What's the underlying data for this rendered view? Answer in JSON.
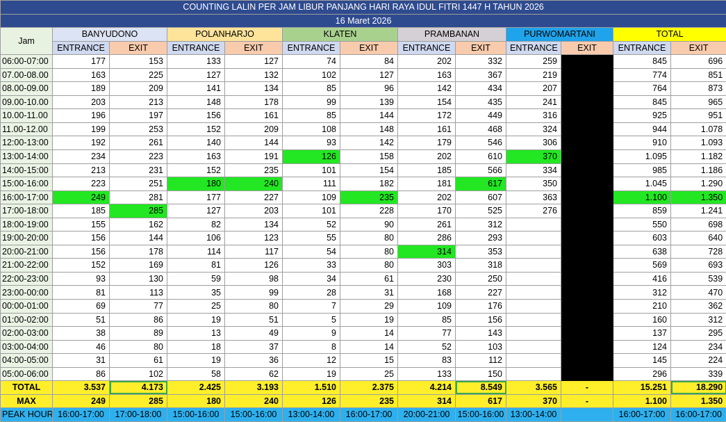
{
  "title": "COUNTING LALIN PER JAM LIBUR PANJANG HARI RAYA IDUL FITRI 1447 H TAHUN 2026",
  "date": "16 Maret 2026",
  "jam_label": "Jam",
  "entrance_label": "ENTRANCE",
  "exit_label": "EXIT",
  "gates": [
    {
      "name": "BANYUDONO",
      "head_color": "#dbe3f4",
      "entr_color": "#cfd9ef",
      "exit_color": "#f8cbad"
    },
    {
      "name": "POLANHARJO",
      "head_color": "#fde49a",
      "entr_color": "#cfd9ef",
      "exit_color": "#f8cbad"
    },
    {
      "name": "KLATEN",
      "head_color": "#a9d18e",
      "entr_color": "#cfd9ef",
      "exit_color": "#f8cbad"
    },
    {
      "name": "PRAMBANAN",
      "head_color": "#d5d0d5",
      "entr_color": "#cfd9ef",
      "exit_color": "#f8cbad"
    },
    {
      "name": "PURWOMARTANI",
      "head_color": "#1fa3ea",
      "entr_color": "#cfd9ef",
      "exit_color": "#f8cbad"
    },
    {
      "name": "TOTAL",
      "head_color": "#ffff00",
      "entr_color": "#cfd9ef",
      "exit_color": "#f8cbad"
    }
  ],
  "rows": [
    {
      "time": "06:00-07:00",
      "v": [
        "177",
        "153",
        "133",
        "127",
        "74",
        "84",
        "202",
        "332",
        "259",
        "",
        "845",
        "696"
      ]
    },
    {
      "time": "07.00-08.00",
      "v": [
        "163",
        "225",
        "127",
        "132",
        "102",
        "127",
        "163",
        "367",
        "219",
        "",
        "774",
        "851"
      ]
    },
    {
      "time": "08.00-09.00",
      "v": [
        "189",
        "209",
        "141",
        "134",
        "85",
        "96",
        "142",
        "434",
        "207",
        "",
        "764",
        "873"
      ]
    },
    {
      "time": "09.00-10.00",
      "v": [
        "203",
        "213",
        "148",
        "178",
        "99",
        "139",
        "154",
        "435",
        "241",
        "",
        "845",
        "965"
      ]
    },
    {
      "time": "10.00-11.00",
      "v": [
        "196",
        "197",
        "156",
        "161",
        "85",
        "144",
        "172",
        "449",
        "316",
        "",
        "925",
        "951"
      ]
    },
    {
      "time": "11.00-12.00",
      "v": [
        "199",
        "253",
        "152",
        "209",
        "108",
        "148",
        "161",
        "468",
        "324",
        "",
        "944",
        "1.078"
      ]
    },
    {
      "time": "12:00-13:00",
      "v": [
        "192",
        "261",
        "140",
        "144",
        "93",
        "142",
        "179",
        "546",
        "306",
        "",
        "910",
        "1.093"
      ]
    },
    {
      "time": "13:00-14:00",
      "v": [
        "234",
        "223",
        "163",
        "191",
        "126",
        "158",
        "202",
        "610",
        "370",
        "",
        "1.095",
        "1.182"
      ]
    },
    {
      "time": "14:00-15:00",
      "v": [
        "213",
        "231",
        "152",
        "235",
        "101",
        "154",
        "185",
        "566",
        "334",
        "",
        "985",
        "1.186"
      ]
    },
    {
      "time": "15:00-16:00",
      "v": [
        "223",
        "251",
        "180",
        "240",
        "111",
        "182",
        "181",
        "617",
        "350",
        "",
        "1.045",
        "1.290"
      ]
    },
    {
      "time": "16:00-17:00",
      "v": [
        "249",
        "281",
        "177",
        "227",
        "109",
        "235",
        "202",
        "607",
        "363",
        "",
        "1.100",
        "1.350"
      ]
    },
    {
      "time": "17:00-18:00",
      "v": [
        "185",
        "285",
        "127",
        "203",
        "101",
        "228",
        "170",
        "525",
        "276",
        "",
        "859",
        "1.241"
      ]
    },
    {
      "time": "18:00-19:00",
      "v": [
        "155",
        "162",
        "82",
        "134",
        "52",
        "90",
        "261",
        "312",
        "",
        "",
        "550",
        "698"
      ]
    },
    {
      "time": "19:00-20:00",
      "v": [
        "156",
        "144",
        "106",
        "123",
        "55",
        "80",
        "286",
        "293",
        "",
        "",
        "603",
        "640"
      ]
    },
    {
      "time": "20:00-21:00",
      "v": [
        "156",
        "178",
        "114",
        "117",
        "54",
        "80",
        "314",
        "353",
        "",
        "",
        "638",
        "728"
      ]
    },
    {
      "time": "21:00-22:00",
      "v": [
        "152",
        "169",
        "81",
        "126",
        "33",
        "80",
        "303",
        "318",
        "",
        "",
        "569",
        "693"
      ]
    },
    {
      "time": "22:00-23:00",
      "v": [
        "93",
        "130",
        "59",
        "98",
        "34",
        "61",
        "230",
        "250",
        "",
        "",
        "416",
        "539"
      ]
    },
    {
      "time": "23:00-00:00",
      "v": [
        "81",
        "113",
        "35",
        "99",
        "28",
        "31",
        "168",
        "227",
        "",
        "",
        "312",
        "470"
      ]
    },
    {
      "time": "00:00-01:00",
      "v": [
        "69",
        "77",
        "25",
        "80",
        "7",
        "29",
        "109",
        "176",
        "",
        "",
        "210",
        "362"
      ]
    },
    {
      "time": "01:00-02:00",
      "v": [
        "51",
        "86",
        "19",
        "51",
        "5",
        "19",
        "85",
        "156",
        "",
        "",
        "160",
        "312"
      ]
    },
    {
      "time": "02:00-03:00",
      "v": [
        "38",
        "89",
        "13",
        "49",
        "9",
        "14",
        "77",
        "143",
        "",
        "",
        "137",
        "295"
      ]
    },
    {
      "time": "03:00-04:00",
      "v": [
        "46",
        "80",
        "18",
        "37",
        "8",
        "14",
        "52",
        "103",
        "",
        "",
        "124",
        "234"
      ]
    },
    {
      "time": "04:00-05:00",
      "v": [
        "31",
        "61",
        "19",
        "36",
        "12",
        "15",
        "83",
        "112",
        "",
        "",
        "145",
        "224"
      ]
    },
    {
      "time": "05:00-06:00",
      "v": [
        "86",
        "102",
        "58",
        "62",
        "19",
        "25",
        "133",
        "150",
        "",
        "",
        "296",
        "339"
      ]
    }
  ],
  "highlights": [
    [
      10,
      0
    ],
    [
      11,
      1
    ],
    [
      9,
      2
    ],
    [
      9,
      3
    ],
    [
      7,
      4
    ],
    [
      10,
      5
    ],
    [
      14,
      6
    ],
    [
      9,
      7
    ],
    [
      7,
      8
    ],
    [
      10,
      10
    ],
    [
      10,
      11
    ]
  ],
  "total": {
    "label": "TOTAL",
    "v": [
      "3.537",
      "4.173",
      "2.425",
      "3.193",
      "1.510",
      "2.375",
      "4.214",
      "8.549",
      "3.565",
      "-",
      "15.251",
      "18.290"
    ]
  },
  "max": {
    "label": "MAX",
    "v": [
      "249",
      "285",
      "180",
      "240",
      "126",
      "235",
      "314",
      "617",
      "370",
      "-",
      "1.100",
      "1.350"
    ]
  },
  "peak": {
    "label": "PEAK HOUR",
    "v": [
      "16:00-17:00",
      "17:00-18:00",
      "15:00-16:00",
      "15:00-16:00",
      "13:00-14:00",
      "16:00-17:00",
      "20:00-21:00",
      "15:00-16:00",
      "13:00-14:00",
      "",
      "16:00-17:00",
      "16:00-17:00"
    ]
  },
  "colors": {
    "title_bg": "#2f4b8f",
    "highlight": "#22e722",
    "blackout": "#000000",
    "total_row": "#ffef2a",
    "peak_row": "#2eb0ee"
  }
}
